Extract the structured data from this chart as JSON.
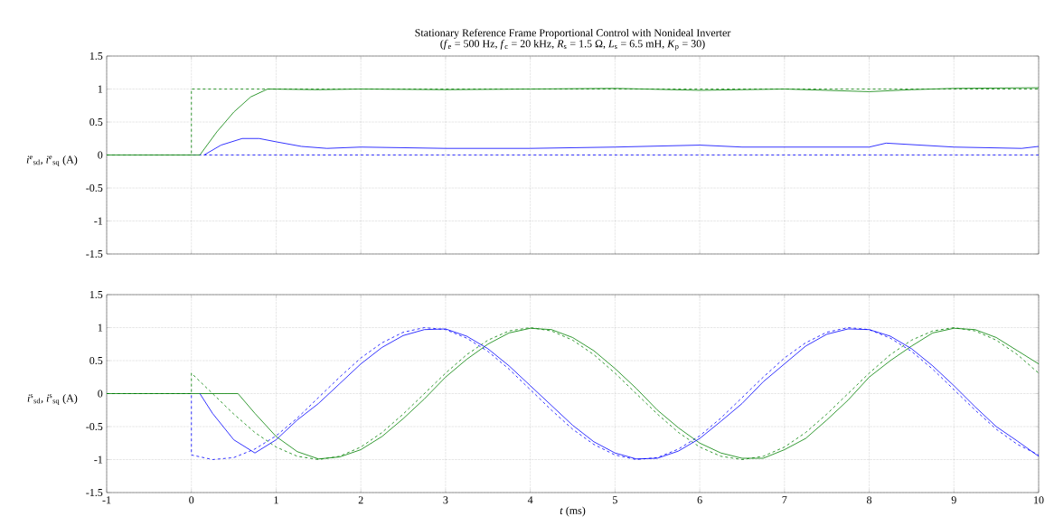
{
  "chart_data": [
    {
      "type": "line",
      "title": "Stationary Reference Frame Proportional Control with Nonideal Inverter",
      "subtitle": "(*f*$_{e}$ = 500 Hz, *f*$_{c}$ = 20 kHz, *R*$_{s}$ = 1.5 Ω, *L*$_{s}$ = 6.5 mH, *K*$_{p}$ = 30)",
      "ylabel": "*i*$^{e}$$_{sd}$, *i*$^{e}$$_{sq}$ (A)",
      "xlim": [
        -1,
        10
      ],
      "ylim": [
        -1.5,
        1.5
      ],
      "xticks": [
        -1,
        0,
        1,
        2,
        3,
        4,
        5,
        6,
        7,
        8,
        9,
        10
      ],
      "yticks": [
        -1.5,
        -1,
        -0.5,
        0,
        0.5,
        1,
        1.5
      ],
      "grid": true,
      "tick_labels": "y",
      "series": [
        {
          "color": "#0000ff",
          "line_style": "dashed",
          "x": [
            -1,
            10
          ],
          "values": [
            0,
            0
          ]
        },
        {
          "color": "#008000",
          "line_style": "dashed",
          "x": [
            -1,
            0,
            0,
            10
          ],
          "values": [
            0,
            0,
            1,
            1
          ]
        },
        {
          "color": "#008000",
          "line_style": "solid",
          "x": [
            -1,
            0.1,
            0.3,
            0.5,
            0.7,
            0.9,
            1.5,
            2,
            3,
            4,
            5,
            6,
            7,
            8,
            8.5,
            9,
            10
          ],
          "values": [
            0,
            0,
            0.35,
            0.65,
            0.88,
            1.0,
            0.99,
            1.0,
            0.99,
            1.0,
            1.01,
            0.98,
            1.0,
            0.96,
            0.99,
            1.01,
            1.02
          ]
        },
        {
          "color": "#0000ff",
          "line_style": "solid",
          "x": [
            0.15,
            0.35,
            0.6,
            0.8,
            1.0,
            1.3,
            1.6,
            2,
            3,
            4,
            5,
            6,
            6.5,
            7,
            8,
            8.2,
            9,
            9.8,
            10
          ],
          "values": [
            0,
            0.15,
            0.25,
            0.25,
            0.2,
            0.13,
            0.1,
            0.12,
            0.1,
            0.1,
            0.12,
            0.15,
            0.12,
            0.12,
            0.12,
            0.18,
            0.12,
            0.1,
            0.13
          ]
        }
      ]
    },
    {
      "type": "line",
      "xlabel": "*t* (ms)",
      "ylabel": "*i*$^{s}$$_{sd}$, *i*$^{s}$$_{sq}$ (A)",
      "xlim": [
        -1,
        10
      ],
      "ylim": [
        -1.5,
        1.5
      ],
      "xticks": [
        -1,
        0,
        1,
        2,
        3,
        4,
        5,
        6,
        7,
        8,
        9,
        10
      ],
      "yticks": [
        -1.5,
        -1,
        -0.5,
        0,
        0.5,
        1,
        1.5
      ],
      "grid": true,
      "series": [
        {
          "color": "#0000ff",
          "line_style": "dashed",
          "x": [
            -1,
            0,
            0,
            0.25,
            0.5,
            0.75,
            1,
            1.25,
            1.5,
            1.75,
            2,
            2.25,
            2.5,
            2.75,
            3,
            3.25,
            3.5,
            3.75,
            4,
            4.25,
            4.5,
            4.75,
            5,
            5.25,
            5.5,
            5.75,
            6,
            6.25,
            6.5,
            6.75,
            7,
            7.25,
            7.5,
            7.75,
            8,
            8.25,
            8.5,
            8.75,
            9,
            9.25,
            9.5,
            9.75,
            10
          ],
          "values": [
            0,
            0,
            -0.93,
            -1.0,
            -0.97,
            -0.84,
            -0.64,
            -0.37,
            -0.06,
            0.25,
            0.54,
            0.77,
            0.93,
            1.0,
            0.97,
            0.84,
            0.64,
            0.37,
            0.06,
            -0.25,
            -0.54,
            -0.77,
            -0.93,
            -1.0,
            -0.97,
            -0.84,
            -0.64,
            -0.37,
            -0.06,
            0.25,
            0.54,
            0.77,
            0.93,
            1.0,
            0.97,
            0.84,
            0.64,
            0.37,
            0.06,
            -0.25,
            -0.54,
            -0.77,
            -0.93
          ]
        },
        {
          "color": "#008000",
          "line_style": "dashed",
          "x": [
            -1,
            0,
            0,
            0.25,
            0.5,
            0.75,
            1,
            1.25,
            1.5,
            1.75,
            2,
            2.25,
            2.5,
            2.75,
            3,
            3.25,
            3.5,
            3.75,
            4,
            4.25,
            4.5,
            4.75,
            5,
            5.25,
            5.5,
            5.75,
            6,
            6.25,
            6.5,
            6.75,
            7,
            7.25,
            7.5,
            7.75,
            8,
            8.25,
            8.5,
            8.75,
            9,
            9.25,
            9.5,
            9.75,
            10
          ],
          "values": [
            0,
            0,
            0.31,
            0,
            -0.31,
            -0.59,
            -0.81,
            -0.95,
            -1.0,
            -0.95,
            -0.81,
            -0.59,
            -0.31,
            0,
            0.31,
            0.59,
            0.81,
            0.95,
            1.0,
            0.95,
            0.81,
            0.59,
            0.31,
            0,
            -0.31,
            -0.59,
            -0.81,
            -0.95,
            -1.0,
            -0.95,
            -0.81,
            -0.59,
            -0.31,
            0,
            0.31,
            0.59,
            0.81,
            0.95,
            1.0,
            0.95,
            0.81,
            0.59,
            0.31
          ]
        },
        {
          "color": "#008000",
          "line_style": "solid",
          "x": [
            -1,
            0.55,
            0.75,
            1,
            1.25,
            1.5,
            1.75,
            2,
            2.25,
            2.5,
            2.75,
            3,
            3.25,
            3.5,
            3.75,
            4,
            4.25,
            4.5,
            4.75,
            5,
            5.25,
            5.5,
            5.75,
            6,
            6.25,
            6.5,
            6.75,
            7,
            7.25,
            7.5,
            7.75,
            8,
            8.25,
            8.5,
            8.75,
            9,
            9.25,
            9.5,
            9.75,
            10
          ],
          "values": [
            0,
            0,
            -0.3,
            -0.65,
            -0.88,
            -0.99,
            -0.96,
            -0.85,
            -0.65,
            -0.38,
            -0.08,
            0.25,
            0.52,
            0.75,
            0.92,
            0.99,
            0.97,
            0.85,
            0.65,
            0.38,
            0.08,
            -0.25,
            -0.52,
            -0.75,
            -0.9,
            -0.98,
            -0.98,
            -0.85,
            -0.68,
            -0.4,
            -0.1,
            0.25,
            0.5,
            0.72,
            0.92,
            0.99,
            0.97,
            0.85,
            0.65,
            0.45
          ]
        },
        {
          "color": "#0000ff",
          "line_style": "solid",
          "x": [
            0.1,
            0.25,
            0.5,
            0.75,
            1,
            1.25,
            1.5,
            1.75,
            2,
            2.25,
            2.5,
            2.75,
            3,
            3.25,
            3.5,
            3.75,
            4,
            4.25,
            4.5,
            4.75,
            5,
            5.25,
            5.5,
            5.75,
            6,
            6.25,
            6.5,
            6.75,
            7,
            7.25,
            7.5,
            7.75,
            8,
            8.25,
            8.5,
            8.75,
            9,
            9.25,
            9.5,
            9.75,
            10
          ],
          "values": [
            0,
            -0.3,
            -0.7,
            -0.9,
            -0.7,
            -0.4,
            -0.15,
            0.15,
            0.45,
            0.7,
            0.88,
            0.97,
            0.98,
            0.87,
            0.68,
            0.42,
            0.12,
            -0.18,
            -0.48,
            -0.73,
            -0.9,
            -0.99,
            -0.98,
            -0.87,
            -0.68,
            -0.42,
            -0.15,
            0.18,
            0.45,
            0.72,
            0.9,
            0.98,
            0.97,
            0.87,
            0.68,
            0.42,
            0.12,
            -0.2,
            -0.5,
            -0.72,
            -0.95
          ]
        }
      ]
    }
  ]
}
